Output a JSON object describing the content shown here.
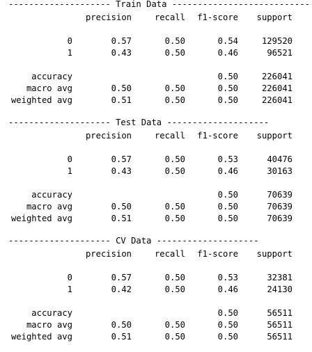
{
  "sections": [
    {
      "banner": "-------------------- Train Data ---------------------------",
      "header": {
        "precision": "precision",
        "recall": "recall",
        "f1": "f1-score",
        "support": "support"
      },
      "rows": [
        {
          "label": "0",
          "precision": "0.57",
          "recall": "0.50",
          "f1": "0.54",
          "support": "129520"
        },
        {
          "label": "1",
          "precision": "0.43",
          "recall": "0.50",
          "f1": "0.46",
          "support": "96521"
        }
      ],
      "summary": [
        {
          "label": "accuracy",
          "precision": "",
          "recall": "",
          "f1": "0.50",
          "support": "226041"
        },
        {
          "label": "macro avg",
          "precision": "0.50",
          "recall": "0.50",
          "f1": "0.50",
          "support": "226041"
        },
        {
          "label": "weighted avg",
          "precision": "0.51",
          "recall": "0.50",
          "f1": "0.50",
          "support": "226041"
        }
      ]
    },
    {
      "banner": "-------------------- Test Data --------------------",
      "header": {
        "precision": "precision",
        "recall": "recall",
        "f1": "f1-score",
        "support": "support"
      },
      "rows": [
        {
          "label": "0",
          "precision": "0.57",
          "recall": "0.50",
          "f1": "0.53",
          "support": "40476"
        },
        {
          "label": "1",
          "precision": "0.43",
          "recall": "0.50",
          "f1": "0.46",
          "support": "30163"
        }
      ],
      "summary": [
        {
          "label": "accuracy",
          "precision": "",
          "recall": "",
          "f1": "0.50",
          "support": "70639"
        },
        {
          "label": "macro avg",
          "precision": "0.50",
          "recall": "0.50",
          "f1": "0.50",
          "support": "70639"
        },
        {
          "label": "weighted avg",
          "precision": "0.51",
          "recall": "0.50",
          "f1": "0.50",
          "support": "70639"
        }
      ]
    },
    {
      "banner": "-------------------- CV Data --------------------",
      "header": {
        "precision": "precision",
        "recall": "recall",
        "f1": "f1-score",
        "support": "support"
      },
      "rows": [
        {
          "label": "0",
          "precision": "0.57",
          "recall": "0.50",
          "f1": "0.53",
          "support": "32381"
        },
        {
          "label": "1",
          "precision": "0.42",
          "recall": "0.50",
          "f1": "0.46",
          "support": "24130"
        }
      ],
      "summary": [
        {
          "label": "accuracy",
          "precision": "",
          "recall": "",
          "f1": "0.50",
          "support": "56511"
        },
        {
          "label": "macro avg",
          "precision": "0.50",
          "recall": "0.50",
          "f1": "0.50",
          "support": "56511"
        },
        {
          "label": "weighted avg",
          "precision": "0.51",
          "recall": "0.50",
          "f1": "0.50",
          "support": "56511"
        }
      ]
    }
  ]
}
